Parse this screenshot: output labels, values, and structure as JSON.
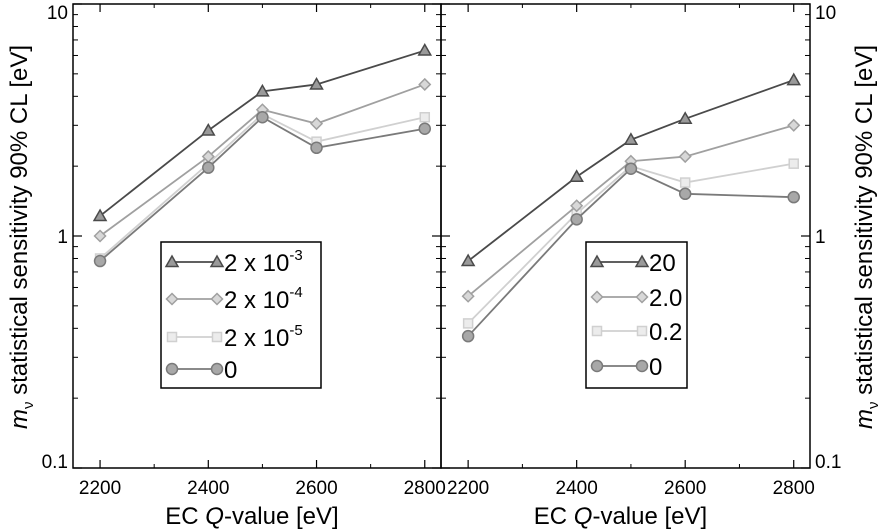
{
  "figure": {
    "ylabel": {
      "symbol": "m",
      "subscript": "ν",
      "text": " statistical sensitivity 90% CL [eV]"
    }
  },
  "chart_data": [
    {
      "type": "line",
      "panel": "left",
      "yscale": "log",
      "ylim": [
        0.1,
        10
      ],
      "xlim": [
        2150,
        2830
      ],
      "x": [
        2200,
        2400,
        2500,
        2600,
        2800
      ],
      "xticks": [
        2200,
        2400,
        2600,
        2800
      ],
      "xtick_labels": [
        "2200",
        "2400",
        "2600",
        "2800"
      ],
      "yticks": [
        0.1,
        1,
        10
      ],
      "ytick_labels": [
        "0.1",
        "1",
        "10"
      ],
      "xlabel_prefix": "EC ",
      "xlabel_italic": "Q",
      "xlabel_suffix": "-value [eV]",
      "ylabel": "m_ν statistical sensitivity 90% CL [eV]",
      "grid": false,
      "legend_position": "lower-center",
      "series": [
        {
          "name": "2 x 10-3",
          "label_base": "2 x 10",
          "label_exp": "-3",
          "marker": "triangle",
          "color": "#4a4a4a",
          "values": [
            1.22,
            2.85,
            4.2,
            4.5,
            6.3
          ]
        },
        {
          "name": "2 x 10-4",
          "label_base": "2 x 10",
          "label_exp": "-4",
          "marker": "diamond",
          "color": "#a0a0a0",
          "values": [
            1.0,
            2.2,
            3.5,
            3.05,
            4.5
          ]
        },
        {
          "name": "2 x 10-5",
          "label_base": "2 x 10",
          "label_exp": "-5",
          "marker": "square",
          "color": "#d0d0d0",
          "values": [
            0.8,
            2.05,
            3.35,
            2.55,
            3.25
          ]
        },
        {
          "name": "0",
          "label_base": "0",
          "label_exp": "",
          "marker": "circle",
          "color": "#7a7a7a",
          "values": [
            0.78,
            1.97,
            3.25,
            2.4,
            2.9
          ]
        }
      ]
    },
    {
      "type": "line",
      "panel": "right",
      "yscale": "log",
      "ylim": [
        0.1,
        10
      ],
      "xlim": [
        2150,
        2830
      ],
      "x": [
        2200,
        2400,
        2500,
        2600,
        2800
      ],
      "xticks": [
        2200,
        2400,
        2600,
        2800
      ],
      "xtick_labels": [
        "2200",
        "2400",
        "2600",
        "2800"
      ],
      "yticks": [
        0.1,
        1,
        10
      ],
      "ytick_labels": [
        "0.1",
        "1",
        "10"
      ],
      "xlabel_prefix": "EC ",
      "xlabel_italic": "Q",
      "xlabel_suffix": "-value [eV]",
      "ylabel": "m_ν statistical sensitivity 90% CL [eV]",
      "grid": false,
      "legend_position": "lower-right",
      "series": [
        {
          "name": "20",
          "label_base": "20",
          "label_exp": "",
          "marker": "triangle",
          "color": "#4a4a4a",
          "values": [
            0.78,
            1.8,
            2.6,
            3.2,
            4.7
          ]
        },
        {
          "name": "2.0",
          "label_base": "2.0",
          "label_exp": "",
          "marker": "diamond",
          "color": "#a0a0a0",
          "values": [
            0.55,
            1.35,
            2.1,
            2.2,
            3.0
          ]
        },
        {
          "name": "0.2",
          "label_base": "0.2",
          "label_exp": "",
          "marker": "square",
          "color": "#d0d0d0",
          "values": [
            0.42,
            1.25,
            2.0,
            1.7,
            2.05
          ]
        },
        {
          "name": "0",
          "label_base": "0",
          "label_exp": "",
          "marker": "circle",
          "color": "#7a7a7a",
          "values": [
            0.37,
            1.18,
            1.95,
            1.52,
            1.47
          ]
        }
      ]
    }
  ]
}
